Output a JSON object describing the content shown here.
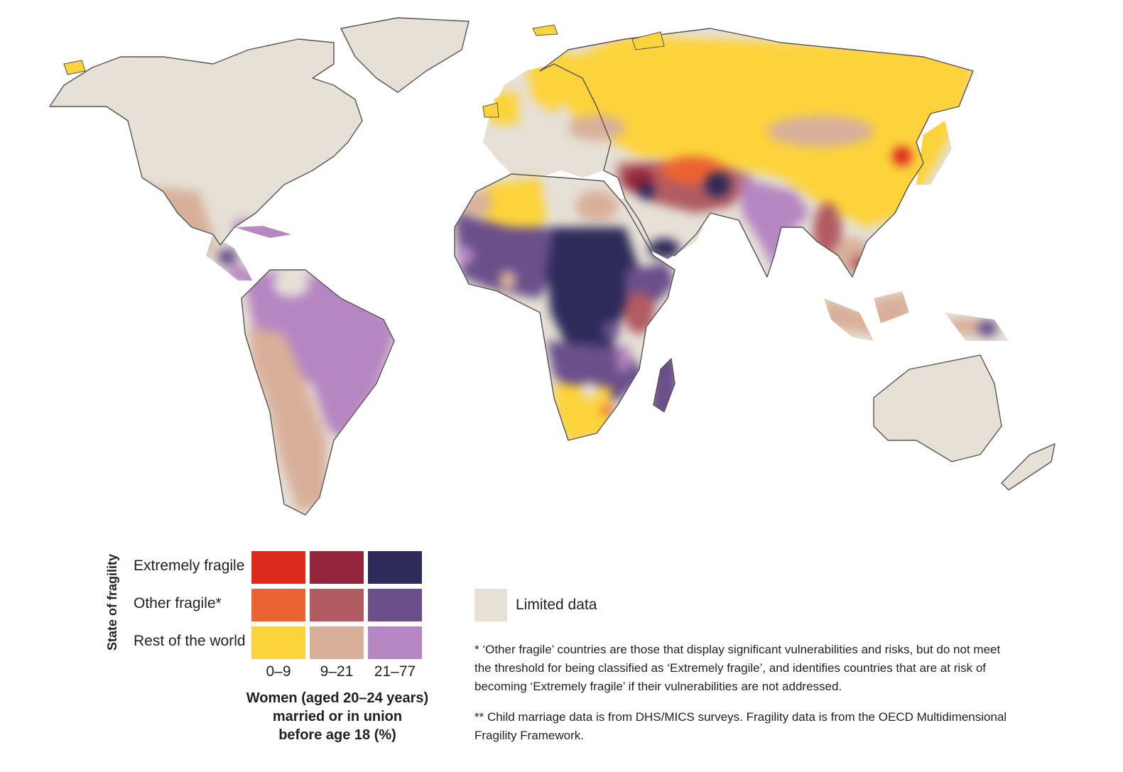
{
  "legend": {
    "axis_title_vertical": "State of fragility",
    "axis_title_horizontal": [
      "Women (aged 20–24 years)",
      "married or in union",
      "before age 18 (%)"
    ],
    "rows": [
      {
        "label": "Extremely fragile",
        "colors": [
          "#dc2a1f",
          "#93253c",
          "#2e2a5a"
        ]
      },
      {
        "label": "Other fragile*",
        "colors": [
          "#ea6333",
          "#b15b62",
          "#6a4f8a"
        ]
      },
      {
        "label": "Rest of the world",
        "colors": [
          "#fcd33b",
          "#d8b09a",
          "#b586c1"
        ]
      }
    ],
    "columns": [
      "0–9",
      "9–21",
      "21–77"
    ],
    "limited_data": {
      "label": "Limited data",
      "color": "#e6e0d6"
    }
  },
  "notes": [
    "* ‘Other fragile’ countries are those that display significant vulnerabilities and risks, but do not meet the threshold for being classified as ‘Extremely fragile’, and identifies countries that are at risk of becoming ‘Extremely fragile’ if their vulnerabilities are not addressed.",
    "** Child marriage data is from DHS/MICS surveys. Fragility data is from the OECD Multidimensional Fragility Framework."
  ],
  "map": {
    "regions": [
      {
        "name": "North America",
        "category": "limited_data"
      },
      {
        "name": "Greenland",
        "category": "limited_data"
      },
      {
        "name": "Mexico",
        "category": "rest-9-21"
      },
      {
        "name": "Central America",
        "category": "other-21-77"
      },
      {
        "name": "Caribbean",
        "category": "rest-21-77"
      },
      {
        "name": "South America north",
        "category": "rest-21-77"
      },
      {
        "name": "South America south",
        "category": "rest-9-21"
      },
      {
        "name": "Europe",
        "category": "limited_data"
      },
      {
        "name": "Russia",
        "category": "rest-0-9"
      },
      {
        "name": "China",
        "category": "rest-0-9"
      },
      {
        "name": "Mongolia",
        "category": "rest-9-21"
      },
      {
        "name": "Middle East",
        "category": "other-9-21"
      },
      {
        "name": "Arabian Peninsula",
        "category": "limited_data"
      },
      {
        "name": "India",
        "category": "rest-21-77"
      },
      {
        "name": "Southeast Asia",
        "category": "other-9-21"
      },
      {
        "name": "West Africa",
        "category": "other-21-77"
      },
      {
        "name": "Central Africa",
        "category": "extreme-21-77"
      },
      {
        "name": "Southern Africa",
        "category": "rest-0-9"
      },
      {
        "name": "Madagascar",
        "category": "other-21-77"
      },
      {
        "name": "Australia",
        "category": "limited_data"
      },
      {
        "name": "Papua New Guinea",
        "category": "other-21-77"
      }
    ]
  }
}
